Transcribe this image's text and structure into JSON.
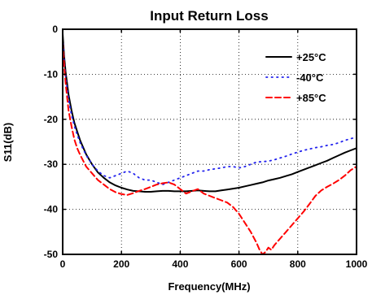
{
  "chart_data": {
    "type": "line",
    "title": "Input Return Loss",
    "xlabel": "Frequency(MHz)",
    "ylabel": "S11(dB)",
    "xlim": [
      0,
      1000
    ],
    "ylim": [
      -50,
      0
    ],
    "xticks": [
      0,
      200,
      400,
      600,
      800,
      1000
    ],
    "yticks": [
      0,
      -10,
      -20,
      -30,
      -40,
      -50
    ],
    "grid": true,
    "legend_position": "top-right",
    "series": [
      {
        "name": "+25°C",
        "color": "#000000",
        "style": "solid",
        "x": [
          0,
          5,
          10,
          20,
          30,
          40,
          50,
          60,
          80,
          100,
          120,
          140,
          160,
          180,
          200,
          220,
          240,
          260,
          280,
          300,
          320,
          340,
          360,
          380,
          400,
          420,
          440,
          460,
          480,
          500,
          520,
          540,
          560,
          580,
          600,
          620,
          640,
          660,
          680,
          700,
          720,
          740,
          760,
          780,
          800,
          820,
          840,
          860,
          880,
          900,
          920,
          940,
          960,
          980,
          1000
        ],
        "values": [
          -1,
          -6,
          -9.5,
          -14.5,
          -18,
          -20.8,
          -22.8,
          -24.8,
          -27.8,
          -30,
          -31.8,
          -33,
          -34,
          -34.7,
          -35.2,
          -35.6,
          -35.9,
          -36,
          -36.1,
          -36.1,
          -36,
          -35.9,
          -35.9,
          -36,
          -36,
          -36,
          -35.9,
          -35.8,
          -35.9,
          -36,
          -36,
          -35.8,
          -35.6,
          -35.4,
          -35.2,
          -34.9,
          -34.6,
          -34.3,
          -34,
          -33.6,
          -33.3,
          -33,
          -32.6,
          -32.2,
          -31.7,
          -31.2,
          -30.7,
          -30.2,
          -29.7,
          -29.2,
          -28.6,
          -28,
          -27.4,
          -26.9,
          -26.4
        ]
      },
      {
        "name": "-40°C",
        "color": "#2222ee",
        "style": "dotted",
        "x": [
          0,
          5,
          10,
          20,
          30,
          40,
          50,
          60,
          80,
          100,
          120,
          140,
          160,
          180,
          200,
          220,
          240,
          260,
          280,
          300,
          320,
          340,
          360,
          380,
          400,
          420,
          440,
          460,
          480,
          500,
          520,
          540,
          560,
          580,
          600,
          620,
          640,
          660,
          680,
          700,
          720,
          740,
          760,
          780,
          800,
          820,
          840,
          860,
          880,
          900,
          920,
          940,
          960,
          980,
          1000
        ],
        "values": [
          -2,
          -7,
          -10.5,
          -15.5,
          -19,
          -21.5,
          -23.5,
          -25.3,
          -28,
          -30,
          -31.5,
          -32.5,
          -33,
          -32.5,
          -32,
          -31.5,
          -32,
          -33,
          -33.5,
          -33.5,
          -34,
          -34.5,
          -34,
          -33.5,
          -33,
          -32.5,
          -32,
          -31.5,
          -31.5,
          -31.2,
          -31,
          -30.8,
          -30.5,
          -30.5,
          -30.8,
          -30.5,
          -30,
          -29.5,
          -29.4,
          -29.3,
          -29,
          -28.6,
          -28.2,
          -27.7,
          -27.3,
          -26.9,
          -26.6,
          -26.3,
          -26.1,
          -25.8,
          -25.6,
          -25.2,
          -24.7,
          -24.3,
          -24
        ]
      },
      {
        "name": "+85°C",
        "color": "#ff0000",
        "style": "dashed",
        "x": [
          0,
          5,
          10,
          20,
          30,
          40,
          50,
          60,
          80,
          100,
          120,
          140,
          160,
          180,
          200,
          220,
          240,
          260,
          280,
          300,
          320,
          340,
          360,
          380,
          400,
          420,
          440,
          460,
          480,
          500,
          520,
          540,
          560,
          580,
          600,
          620,
          640,
          660,
          670,
          680,
          690,
          700,
          710,
          720,
          740,
          760,
          780,
          800,
          820,
          840,
          860,
          880,
          900,
          920,
          940,
          960,
          980,
          1000
        ],
        "values": [
          -3,
          -8,
          -12,
          -18,
          -21.5,
          -24.5,
          -26.5,
          -28,
          -30.5,
          -32,
          -33.5,
          -34.5,
          -35.5,
          -36.2,
          -36.6,
          -36.8,
          -36.4,
          -35.9,
          -35.5,
          -35,
          -34.5,
          -34.2,
          -34,
          -34.5,
          -35.5,
          -36.5,
          -36,
          -35.5,
          -36.5,
          -37,
          -37.5,
          -38,
          -38.5,
          -39.5,
          -41,
          -43,
          -45,
          -47.5,
          -49,
          -50,
          -49.5,
          -48.5,
          -49,
          -48,
          -46.5,
          -45,
          -43.5,
          -42,
          -40.5,
          -38.8,
          -37,
          -35.8,
          -35,
          -34.3,
          -33.5,
          -32.5,
          -31.3,
          -30.5
        ]
      }
    ]
  }
}
